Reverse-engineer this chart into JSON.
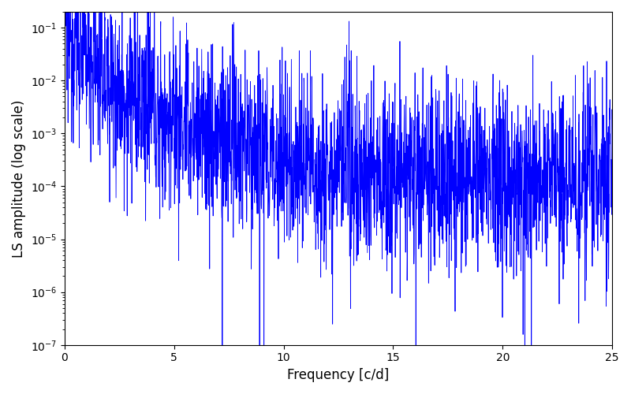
{
  "title": "",
  "xlabel": "Frequency [c/d]",
  "ylabel": "LS amplitude (log scale)",
  "xlim": [
    0,
    25
  ],
  "ylim": [
    1e-07,
    0.2
  ],
  "yscale": "log",
  "line_color": "blue",
  "line_width": 0.6,
  "background_color": "#ffffff",
  "figsize": [
    8.0,
    5.0
  ],
  "dpi": 100,
  "seed": 12345,
  "n_points": 2500,
  "peak_amplitude": 0.09,
  "peak_freq": 0.3
}
